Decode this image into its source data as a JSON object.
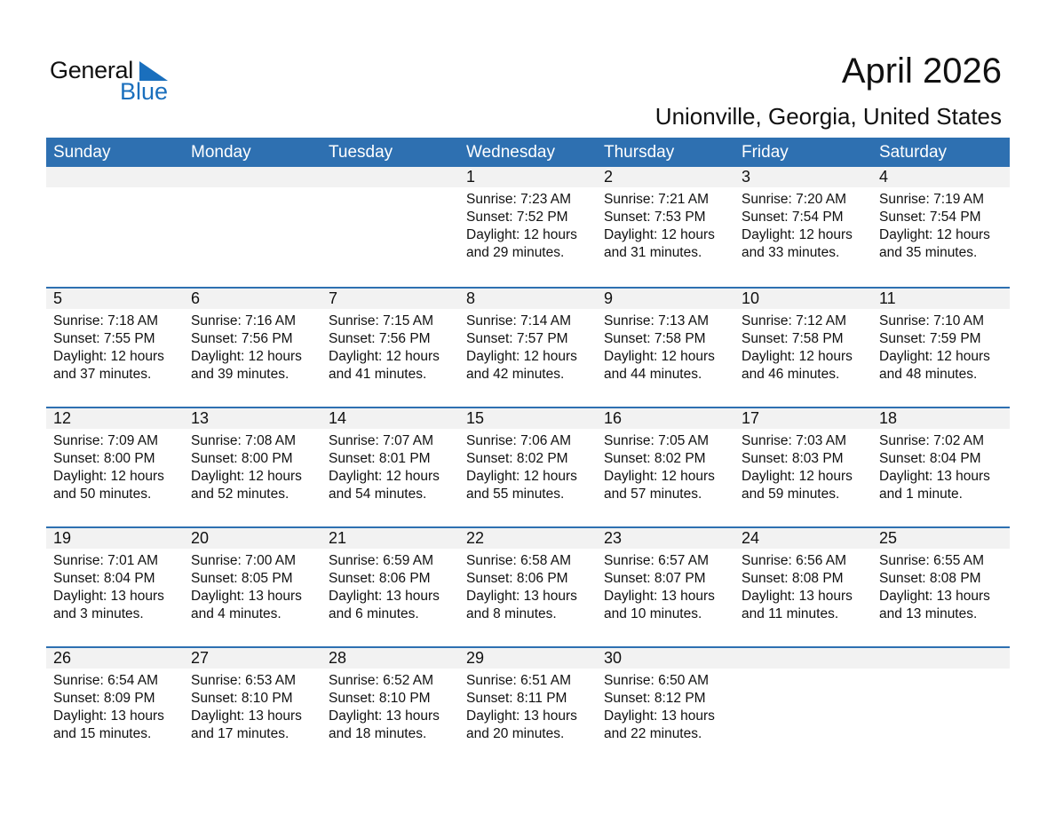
{
  "logo": {
    "text_general": "General",
    "text_blue": "Blue",
    "color": "#1a6fbd"
  },
  "title": "April 2026",
  "subtitle": "Unionville, Georgia, United States",
  "colors": {
    "header": "#2e70b1",
    "band": "#f2f2f2"
  },
  "weekdays": [
    "Sunday",
    "Monday",
    "Tuesday",
    "Wednesday",
    "Thursday",
    "Friday",
    "Saturday"
  ],
  "weeks": [
    [
      null,
      null,
      null,
      {
        "day": "1",
        "sunrise": "Sunrise: 7:23 AM",
        "sunset": "Sunset: 7:52 PM",
        "daylight": "Daylight: 12 hours",
        "minutes": "and 29 minutes."
      },
      {
        "day": "2",
        "sunrise": "Sunrise: 7:21 AM",
        "sunset": "Sunset: 7:53 PM",
        "daylight": "Daylight: 12 hours",
        "minutes": "and 31 minutes."
      },
      {
        "day": "3",
        "sunrise": "Sunrise: 7:20 AM",
        "sunset": "Sunset: 7:54 PM",
        "daylight": "Daylight: 12 hours",
        "minutes": "and 33 minutes."
      },
      {
        "day": "4",
        "sunrise": "Sunrise: 7:19 AM",
        "sunset": "Sunset: 7:54 PM",
        "daylight": "Daylight: 12 hours",
        "minutes": "and 35 minutes."
      }
    ],
    [
      {
        "day": "5",
        "sunrise": "Sunrise: 7:18 AM",
        "sunset": "Sunset: 7:55 PM",
        "daylight": "Daylight: 12 hours",
        "minutes": "and 37 minutes."
      },
      {
        "day": "6",
        "sunrise": "Sunrise: 7:16 AM",
        "sunset": "Sunset: 7:56 PM",
        "daylight": "Daylight: 12 hours",
        "minutes": "and 39 minutes."
      },
      {
        "day": "7",
        "sunrise": "Sunrise: 7:15 AM",
        "sunset": "Sunset: 7:56 PM",
        "daylight": "Daylight: 12 hours",
        "minutes": "and 41 minutes."
      },
      {
        "day": "8",
        "sunrise": "Sunrise: 7:14 AM",
        "sunset": "Sunset: 7:57 PM",
        "daylight": "Daylight: 12 hours",
        "minutes": "and 42 minutes."
      },
      {
        "day": "9",
        "sunrise": "Sunrise: 7:13 AM",
        "sunset": "Sunset: 7:58 PM",
        "daylight": "Daylight: 12 hours",
        "minutes": "and 44 minutes."
      },
      {
        "day": "10",
        "sunrise": "Sunrise: 7:12 AM",
        "sunset": "Sunset: 7:58 PM",
        "daylight": "Daylight: 12 hours",
        "minutes": "and 46 minutes."
      },
      {
        "day": "11",
        "sunrise": "Sunrise: 7:10 AM",
        "sunset": "Sunset: 7:59 PM",
        "daylight": "Daylight: 12 hours",
        "minutes": "and 48 minutes."
      }
    ],
    [
      {
        "day": "12",
        "sunrise": "Sunrise: 7:09 AM",
        "sunset": "Sunset: 8:00 PM",
        "daylight": "Daylight: 12 hours",
        "minutes": "and 50 minutes."
      },
      {
        "day": "13",
        "sunrise": "Sunrise: 7:08 AM",
        "sunset": "Sunset: 8:00 PM",
        "daylight": "Daylight: 12 hours",
        "minutes": "and 52 minutes."
      },
      {
        "day": "14",
        "sunrise": "Sunrise: 7:07 AM",
        "sunset": "Sunset: 8:01 PM",
        "daylight": "Daylight: 12 hours",
        "minutes": "and 54 minutes."
      },
      {
        "day": "15",
        "sunrise": "Sunrise: 7:06 AM",
        "sunset": "Sunset: 8:02 PM",
        "daylight": "Daylight: 12 hours",
        "minutes": "and 55 minutes."
      },
      {
        "day": "16",
        "sunrise": "Sunrise: 7:05 AM",
        "sunset": "Sunset: 8:02 PM",
        "daylight": "Daylight: 12 hours",
        "minutes": "and 57 minutes."
      },
      {
        "day": "17",
        "sunrise": "Sunrise: 7:03 AM",
        "sunset": "Sunset: 8:03 PM",
        "daylight": "Daylight: 12 hours",
        "minutes": "and 59 minutes."
      },
      {
        "day": "18",
        "sunrise": "Sunrise: 7:02 AM",
        "sunset": "Sunset: 8:04 PM",
        "daylight": "Daylight: 13 hours",
        "minutes": "and 1 minute."
      }
    ],
    [
      {
        "day": "19",
        "sunrise": "Sunrise: 7:01 AM",
        "sunset": "Sunset: 8:04 PM",
        "daylight": "Daylight: 13 hours",
        "minutes": "and 3 minutes."
      },
      {
        "day": "20",
        "sunrise": "Sunrise: 7:00 AM",
        "sunset": "Sunset: 8:05 PM",
        "daylight": "Daylight: 13 hours",
        "minutes": "and 4 minutes."
      },
      {
        "day": "21",
        "sunrise": "Sunrise: 6:59 AM",
        "sunset": "Sunset: 8:06 PM",
        "daylight": "Daylight: 13 hours",
        "minutes": "and 6 minutes."
      },
      {
        "day": "22",
        "sunrise": "Sunrise: 6:58 AM",
        "sunset": "Sunset: 8:06 PM",
        "daylight": "Daylight: 13 hours",
        "minutes": "and 8 minutes."
      },
      {
        "day": "23",
        "sunrise": "Sunrise: 6:57 AM",
        "sunset": "Sunset: 8:07 PM",
        "daylight": "Daylight: 13 hours",
        "minutes": "and 10 minutes."
      },
      {
        "day": "24",
        "sunrise": "Sunrise: 6:56 AM",
        "sunset": "Sunset: 8:08 PM",
        "daylight": "Daylight: 13 hours",
        "minutes": "and 11 minutes."
      },
      {
        "day": "25",
        "sunrise": "Sunrise: 6:55 AM",
        "sunset": "Sunset: 8:08 PM",
        "daylight": "Daylight: 13 hours",
        "minutes": "and 13 minutes."
      }
    ],
    [
      {
        "day": "26",
        "sunrise": "Sunrise: 6:54 AM",
        "sunset": "Sunset: 8:09 PM",
        "daylight": "Daylight: 13 hours",
        "minutes": "and 15 minutes."
      },
      {
        "day": "27",
        "sunrise": "Sunrise: 6:53 AM",
        "sunset": "Sunset: 8:10 PM",
        "daylight": "Daylight: 13 hours",
        "minutes": "and 17 minutes."
      },
      {
        "day": "28",
        "sunrise": "Sunrise: 6:52 AM",
        "sunset": "Sunset: 8:10 PM",
        "daylight": "Daylight: 13 hours",
        "minutes": "and 18 minutes."
      },
      {
        "day": "29",
        "sunrise": "Sunrise: 6:51 AM",
        "sunset": "Sunset: 8:11 PM",
        "daylight": "Daylight: 13 hours",
        "minutes": "and 20 minutes."
      },
      {
        "day": "30",
        "sunrise": "Sunrise: 6:50 AM",
        "sunset": "Sunset: 8:12 PM",
        "daylight": "Daylight: 13 hours",
        "minutes": "and 22 minutes."
      },
      null,
      null
    ]
  ]
}
